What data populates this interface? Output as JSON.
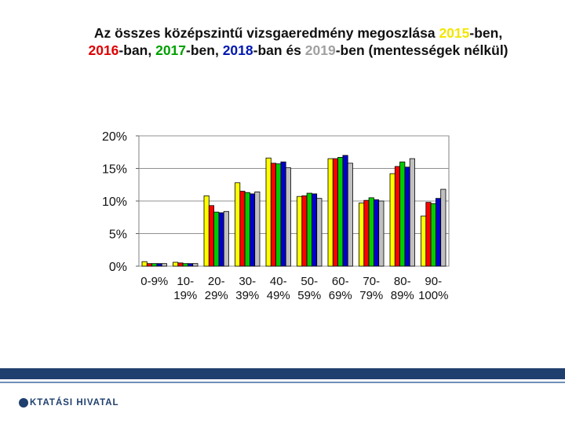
{
  "title": {
    "line1": [
      {
        "text": "Az összes középszintű vizsgaeredmény megoszlása ",
        "color": "#111111"
      },
      {
        "text": "2015",
        "color": "#f2e600"
      },
      {
        "text": "-ben,",
        "color": "#111111"
      }
    ],
    "line2": [
      {
        "text": "2016",
        "color": "#e00000"
      },
      {
        "text": "-ban, ",
        "color": "#111111"
      },
      {
        "text": "2017",
        "color": "#00a000"
      },
      {
        "text": "-ben, ",
        "color": "#111111"
      },
      {
        "text": "2018",
        "color": "#0018b0"
      },
      {
        "text": "-ban és ",
        "color": "#111111"
      },
      {
        "text": "2019",
        "color": "#a0a0a0"
      },
      {
        "text": "-ben (mentességek nélkül)",
        "color": "#111111"
      }
    ]
  },
  "chart_data": {
    "type": "bar",
    "categories": [
      [
        "0-9%"
      ],
      [
        "10-",
        "19%"
      ],
      [
        "20-",
        "29%"
      ],
      [
        "30-",
        "39%"
      ],
      [
        "40-",
        "49%"
      ],
      [
        "50-",
        "59%"
      ],
      [
        "60-",
        "69%"
      ],
      [
        "70-",
        "79%"
      ],
      [
        "80-",
        "89%"
      ],
      [
        "90-",
        "100%"
      ]
    ],
    "series": [
      {
        "name": "2015",
        "color": "#ffff00",
        "values": [
          0.7,
          0.6,
          10.8,
          12.8,
          16.6,
          10.7,
          16.5,
          9.7,
          14.2,
          7.7
        ]
      },
      {
        "name": "2016",
        "color": "#ff0000",
        "values": [
          0.4,
          0.5,
          9.3,
          11.5,
          15.8,
          10.8,
          16.5,
          10.1,
          15.3,
          9.8
        ]
      },
      {
        "name": "2017",
        "color": "#00cc00",
        "values": [
          0.4,
          0.4,
          8.3,
          11.3,
          15.7,
          11.2,
          16.7,
          10.5,
          16.0,
          9.6
        ]
      },
      {
        "name": "2018",
        "color": "#0000cc",
        "values": [
          0.4,
          0.4,
          8.2,
          11.1,
          16.0,
          11.1,
          17.0,
          10.2,
          15.2,
          10.4
        ]
      },
      {
        "name": "2019",
        "color": "#c0c0c0",
        "values": [
          0.4,
          0.4,
          8.4,
          11.4,
          15.1,
          10.4,
          15.8,
          10.0,
          16.5,
          11.8
        ]
      }
    ],
    "yticks": [
      "0%",
      "5%",
      "10%",
      "15%",
      "20%"
    ],
    "ylim": [
      0,
      20
    ],
    "grid": true,
    "title": "",
    "xlabel": "",
    "ylabel": ""
  },
  "footer": {
    "logo_text": "KTATÁSI HIVATAL",
    "bar_color": "#1f3f6e"
  }
}
